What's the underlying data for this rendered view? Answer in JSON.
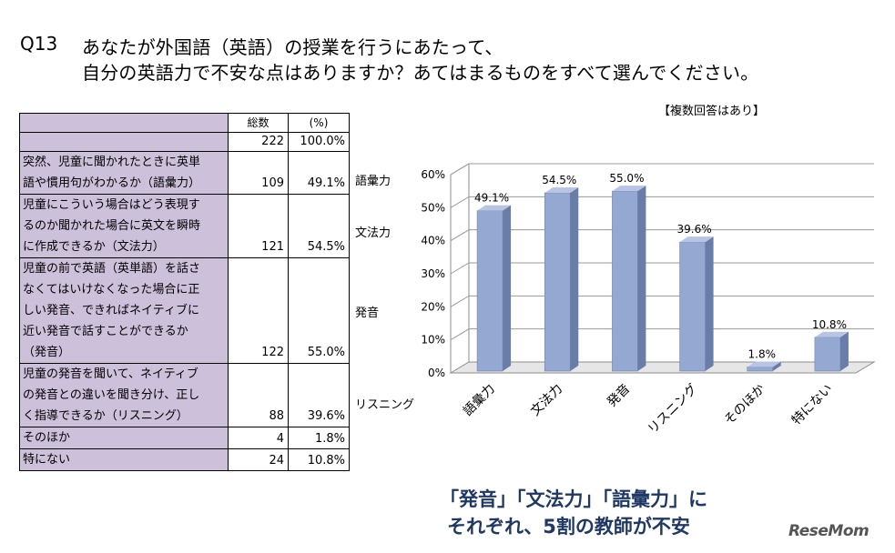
{
  "question": {
    "label": "Q13",
    "line1": "あなたが外国語（英語）の授業を行うにあたって、",
    "line2": "自分の英語力で不安な点はありますか？あてはまるものをすべて選んでください。"
  },
  "table": {
    "header_count": "総数",
    "header_pct": "(%)",
    "total_count": "222",
    "total_pct": "100.0%",
    "rows": [
      {
        "lines": [
          "突然、児童に聞かれたときに英単",
          "語や慣用句がわかるか（語彙力）"
        ],
        "count": "109",
        "pct": "49.1%",
        "side": "語彙力"
      },
      {
        "lines": [
          "児童にこういう場合はどう表現す",
          "るのか聞かれた場合に英文を瞬時",
          "に作成できるか（文法力）"
        ],
        "count": "121",
        "pct": "54.5%",
        "side": "文法力"
      },
      {
        "lines": [
          "児童の前で英語（英単語）を話さ",
          "なくてはいけなくなった場合に正",
          "しい発音、できればネイティブに",
          "近い発音で話すことができるか",
          "（発音）"
        ],
        "count": "122",
        "pct": "55.0%",
        "side": "発音"
      },
      {
        "lines": [
          "児童の発音を聞いて、ネイティブ",
          "の発音との違いを聞き分け、正し",
          "く指導できるか（リスニング）"
        ],
        "count": "88",
        "pct": "39.6%",
        "side": "リスニング"
      },
      {
        "lines": [
          "そのほか"
        ],
        "count": "4",
        "pct": "1.8%"
      },
      {
        "lines": [
          "特にない"
        ],
        "count": "24",
        "pct": "10.8%"
      }
    ]
  },
  "chart_note": "【複数回答はあり】",
  "chart_data": {
    "type": "bar",
    "categories": [
      "語彙力",
      "文法力",
      "発音",
      "リスニング",
      "そのほか",
      "特にない"
    ],
    "values": [
      49.1,
      54.5,
      55.0,
      39.6,
      1.8,
      10.8
    ],
    "value_labels": [
      "49.1%",
      "54.5%",
      "55.0%",
      "39.6%",
      "1.8%",
      "10.8%"
    ],
    "yticks": [
      "0%",
      "10%",
      "20%",
      "30%",
      "40%",
      "50%",
      "60%"
    ],
    "ylim": [
      0,
      60
    ],
    "grid": true,
    "style": "3d-column",
    "bar_color": "#95a8d2"
  },
  "caption": {
    "line1": "「発音」「文法力」「語彙力」に",
    "line2": "それぞれ、5割の教師が不安"
  },
  "logo": "ReseMom"
}
